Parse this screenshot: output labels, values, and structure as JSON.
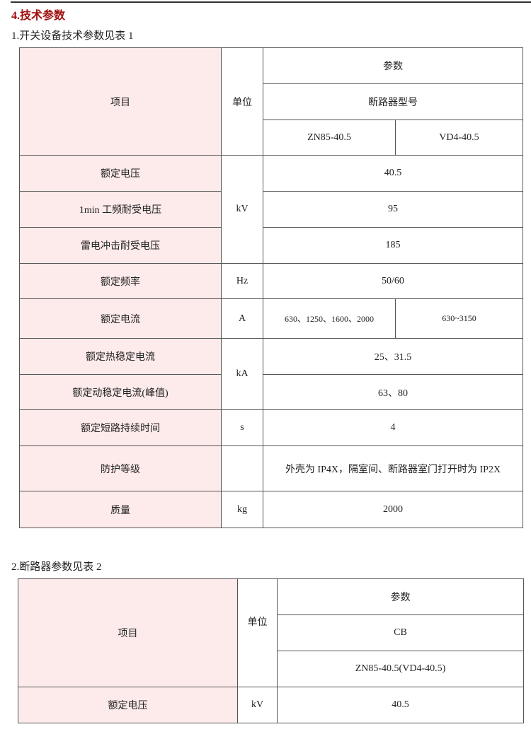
{
  "section_title": "4.技术参数",
  "table1": {
    "caption": "1.开关设备技术参数见表 1",
    "header": {
      "item": "项目",
      "unit": "单位",
      "params": "参数",
      "model": "断路器型号",
      "model_a": "ZN85-40.5",
      "model_b": "VD4-40.5"
    },
    "rows": [
      {
        "item": "额定电压",
        "unit": "kV",
        "value": "40.5"
      },
      {
        "item": "1min 工频耐受电压",
        "value": "95"
      },
      {
        "item": "雷电冲击耐受电压",
        "value": "185"
      },
      {
        "item": "额定频率",
        "unit": "Hz",
        "value": "50/60"
      },
      {
        "item": "额定电流",
        "unit": "A",
        "value_a": "630、1250、1600、2000",
        "value_b": "630~3150"
      },
      {
        "item": "额定热稳定电流",
        "unit": "kA",
        "value": "25、31.5"
      },
      {
        "item": "额定动稳定电流(峰值)",
        "value": "63、80"
      },
      {
        "item": "额定短路持续时间",
        "unit": "s",
        "value": "4"
      },
      {
        "item": "防护等级",
        "unit": "",
        "value": "外壳为 IP4X，隔室间、断路器室门打开时为 IP2X"
      },
      {
        "item": "质量",
        "unit": "kg",
        "value": "2000"
      }
    ]
  },
  "table2": {
    "caption": "2.断路器参数见表 2",
    "header": {
      "item": "项目",
      "unit": "单位",
      "params": "参数",
      "type": "CB",
      "model": "ZN85-40.5(VD4-40.5)"
    },
    "rows": [
      {
        "item": "额定电压",
        "unit": "kV",
        "value": "40.5"
      }
    ]
  }
}
